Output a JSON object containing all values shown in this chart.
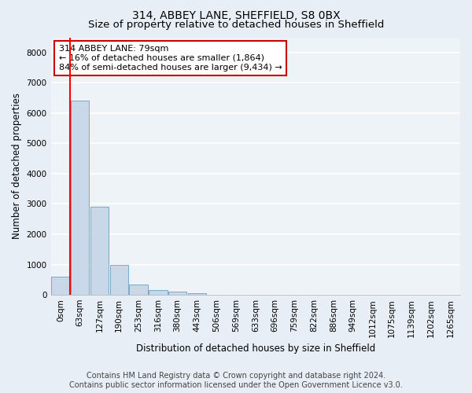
{
  "title": "314, ABBEY LANE, SHEFFIELD, S8 0BX",
  "subtitle": "Size of property relative to detached houses in Sheffield",
  "xlabel": "Distribution of detached houses by size in Sheffield",
  "ylabel": "Number of detached properties",
  "footer_line1": "Contains HM Land Registry data © Crown copyright and database right 2024.",
  "footer_line2": "Contains public sector information licensed under the Open Government Licence v3.0.",
  "categories": [
    "0sqm",
    "63sqm",
    "127sqm",
    "190sqm",
    "253sqm",
    "316sqm",
    "380sqm",
    "443sqm",
    "506sqm",
    "569sqm",
    "633sqm",
    "696sqm",
    "759sqm",
    "822sqm",
    "886sqm",
    "949sqm",
    "1012sqm",
    "1075sqm",
    "1139sqm",
    "1202sqm",
    "1265sqm"
  ],
  "values": [
    600,
    6400,
    2900,
    975,
    350,
    150,
    100,
    65,
    10,
    3,
    2,
    1,
    0,
    0,
    0,
    0,
    0,
    0,
    0,
    0,
    0
  ],
  "bar_color": "#c8d8e8",
  "bar_edge_color": "#7aaac8",
  "property_line_x": 0.5,
  "annotation_text_line1": "314 ABBEY LANE: 79sqm",
  "annotation_text_line2": "← 16% of detached houses are smaller (1,864)",
  "annotation_text_line3": "84% of semi-detached houses are larger (9,434) →",
  "annotation_box_facecolor": "#ffffff",
  "annotation_box_edgecolor": "#cc0000",
  "ylim": [
    0,
    8500
  ],
  "yticks": [
    0,
    1000,
    2000,
    3000,
    4000,
    5000,
    6000,
    7000,
    8000
  ],
  "bg_color": "#e8eef5",
  "plot_bg_color": "#eef3f8",
  "grid_color": "#ffffff",
  "title_fontsize": 10,
  "subtitle_fontsize": 9.5,
  "axis_label_fontsize": 8.5,
  "tick_fontsize": 7.5,
  "annotation_fontsize": 8,
  "footer_fontsize": 7
}
